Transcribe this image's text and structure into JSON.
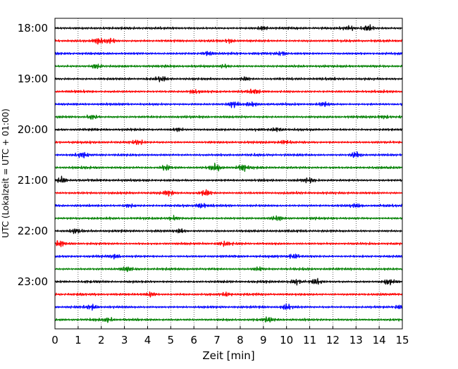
{
  "chart_data": {
    "type": "line",
    "title": "",
    "xlabel": "Zeit  [min]",
    "ylabel": "UTC (Lokalzeit = UTC + 01:00)",
    "xlim": [
      0,
      15
    ],
    "x_ticks": [
      0,
      1,
      2,
      3,
      4,
      5,
      6,
      7,
      8,
      9,
      10,
      11,
      12,
      13,
      14,
      15
    ],
    "x_tick_labels": [
      "0",
      "1",
      "2",
      "3",
      "4",
      "5",
      "6",
      "7",
      "8",
      "9",
      "10",
      "11",
      "12",
      "13",
      "14",
      "15"
    ],
    "y_tick_labels": [
      "18:00",
      "19:00",
      "20:00",
      "21:00",
      "22:00",
      "23:00"
    ],
    "trace_interval_minutes": 15,
    "traces_per_hour": 4,
    "grid": "vertical dotted at each minute",
    "trace_colors": [
      "#000000",
      "#ff0000",
      "#0000ff",
      "#008000"
    ],
    "traces": [
      {
        "start": "18:00",
        "color": "#000000",
        "events": [
          [
            9.0,
            0.55
          ],
          [
            12.7,
            0.6
          ],
          [
            13.5,
            0.8
          ]
        ]
      },
      {
        "start": "18:15",
        "color": "#ff0000",
        "events": [
          [
            1.9,
            0.9
          ],
          [
            2.4,
            0.7
          ],
          [
            7.6,
            0.5
          ]
        ]
      },
      {
        "start": "18:30",
        "color": "#0000ff",
        "events": [
          [
            6.6,
            0.55
          ],
          [
            9.8,
            0.5
          ]
        ]
      },
      {
        "start": "18:45",
        "color": "#008000",
        "events": [
          [
            1.8,
            0.7
          ],
          [
            7.3,
            0.45
          ]
        ]
      },
      {
        "start": "19:00",
        "color": "#000000",
        "events": [
          [
            4.6,
            0.55
          ],
          [
            8.2,
            0.5
          ]
        ]
      },
      {
        "start": "19:15",
        "color": "#ff0000",
        "events": [
          [
            6.0,
            0.5
          ],
          [
            8.6,
            0.65
          ]
        ]
      },
      {
        "start": "19:30",
        "color": "#0000ff",
        "events": [
          [
            7.7,
            0.8
          ],
          [
            8.5,
            0.6
          ],
          [
            11.6,
            0.45
          ]
        ]
      },
      {
        "start": "19:45",
        "color": "#008000",
        "events": [
          [
            1.6,
            0.6
          ],
          [
            14.2,
            0.45
          ]
        ]
      },
      {
        "start": "20:00",
        "color": "#000000",
        "events": [
          [
            5.3,
            0.5
          ],
          [
            9.6,
            0.45
          ]
        ]
      },
      {
        "start": "20:15",
        "color": "#ff0000",
        "events": [
          [
            3.6,
            0.65
          ],
          [
            9.9,
            0.45
          ]
        ]
      },
      {
        "start": "20:30",
        "color": "#0000ff",
        "events": [
          [
            1.2,
            0.7
          ],
          [
            13.0,
            1.0
          ]
        ]
      },
      {
        "start": "20:45",
        "color": "#008000",
        "events": [
          [
            4.8,
            0.75
          ],
          [
            6.9,
            1.0
          ],
          [
            8.1,
            0.95
          ]
        ]
      },
      {
        "start": "21:00",
        "color": "#000000",
        "events": [
          [
            0.3,
            0.9
          ],
          [
            11.0,
            0.6
          ]
        ]
      },
      {
        "start": "21:15",
        "color": "#ff0000",
        "events": [
          [
            4.9,
            0.65
          ],
          [
            6.5,
            0.8
          ]
        ]
      },
      {
        "start": "21:30",
        "color": "#0000ff",
        "events": [
          [
            3.2,
            0.6
          ],
          [
            6.3,
            0.65
          ],
          [
            13.0,
            0.5
          ]
        ]
      },
      {
        "start": "21:45",
        "color": "#008000",
        "events": [
          [
            5.1,
            0.5
          ],
          [
            9.6,
            0.5
          ]
        ]
      },
      {
        "start": "22:00",
        "color": "#000000",
        "events": [
          [
            0.9,
            0.6
          ],
          [
            5.4,
            0.5
          ]
        ]
      },
      {
        "start": "22:15",
        "color": "#ff0000",
        "events": [
          [
            0.2,
            0.65
          ],
          [
            7.3,
            0.5
          ]
        ]
      },
      {
        "start": "22:30",
        "color": "#0000ff",
        "events": [
          [
            2.6,
            0.55
          ],
          [
            10.3,
            0.7
          ]
        ]
      },
      {
        "start": "22:45",
        "color": "#008000",
        "events": [
          [
            3.1,
            0.55
          ],
          [
            8.8,
            0.5
          ]
        ]
      },
      {
        "start": "23:00",
        "color": "#000000",
        "events": [
          [
            10.4,
            0.7
          ],
          [
            11.3,
            0.65
          ],
          [
            14.4,
            0.7
          ]
        ]
      },
      {
        "start": "23:15",
        "color": "#ff0000",
        "events": [
          [
            4.1,
            0.65
          ],
          [
            7.4,
            0.5
          ]
        ]
      },
      {
        "start": "23:30",
        "color": "#0000ff",
        "events": [
          [
            1.6,
            0.7
          ],
          [
            10.0,
            0.75
          ],
          [
            14.9,
            0.5
          ]
        ]
      },
      {
        "start": "23:45",
        "color": "#008000",
        "events": [
          [
            2.3,
            0.5
          ],
          [
            9.2,
            0.55
          ]
        ]
      }
    ]
  }
}
